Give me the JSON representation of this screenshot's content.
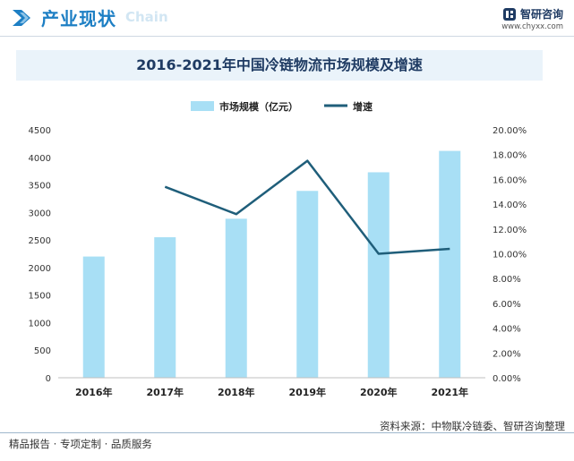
{
  "header": {
    "section_title": "产业现状",
    "watermark_text": "Chain",
    "brand_name": "智研咨询",
    "brand_url": "www.chyxx.com"
  },
  "colors": {
    "bar": "#a8dff5",
    "line": "#1f5e7a",
    "accent": "#1d7fc4"
  },
  "chart_data": {
    "type": "bar+line",
    "title": "2016-2021年中国冷链物流市场规模及增速",
    "categories": [
      "2016年",
      "2017年",
      "2018年",
      "2019年",
      "2020年",
      "2021年"
    ],
    "series": [
      {
        "name": "市场规模（亿元）",
        "type": "bar",
        "axis": "left",
        "values": [
          2200,
          2550,
          2886,
          3391,
          3729,
          4117
        ]
      },
      {
        "name": "增速",
        "type": "line",
        "axis": "right",
        "values": [
          null,
          15.4,
          13.2,
          17.5,
          10.0,
          10.4
        ]
      }
    ],
    "y_left": {
      "min": 0,
      "max": 4500,
      "step": 500,
      "ticks": [
        "0",
        "500",
        "1000",
        "1500",
        "2000",
        "2500",
        "3000",
        "3500",
        "4000",
        "4500"
      ]
    },
    "y_right": {
      "min": 0,
      "max": 20,
      "step": 2,
      "ticks": [
        "0.00%",
        "2.00%",
        "4.00%",
        "6.00%",
        "8.00%",
        "10.00%",
        "12.00%",
        "14.00%",
        "16.00%",
        "18.00%",
        "20.00%"
      ]
    },
    "legend_position": "top-center",
    "grid": false
  },
  "source_text": "资料来源：中物联冷链委、智研咨询整理",
  "footer_text": "精品报告 · 专项定制 · 品质服务"
}
